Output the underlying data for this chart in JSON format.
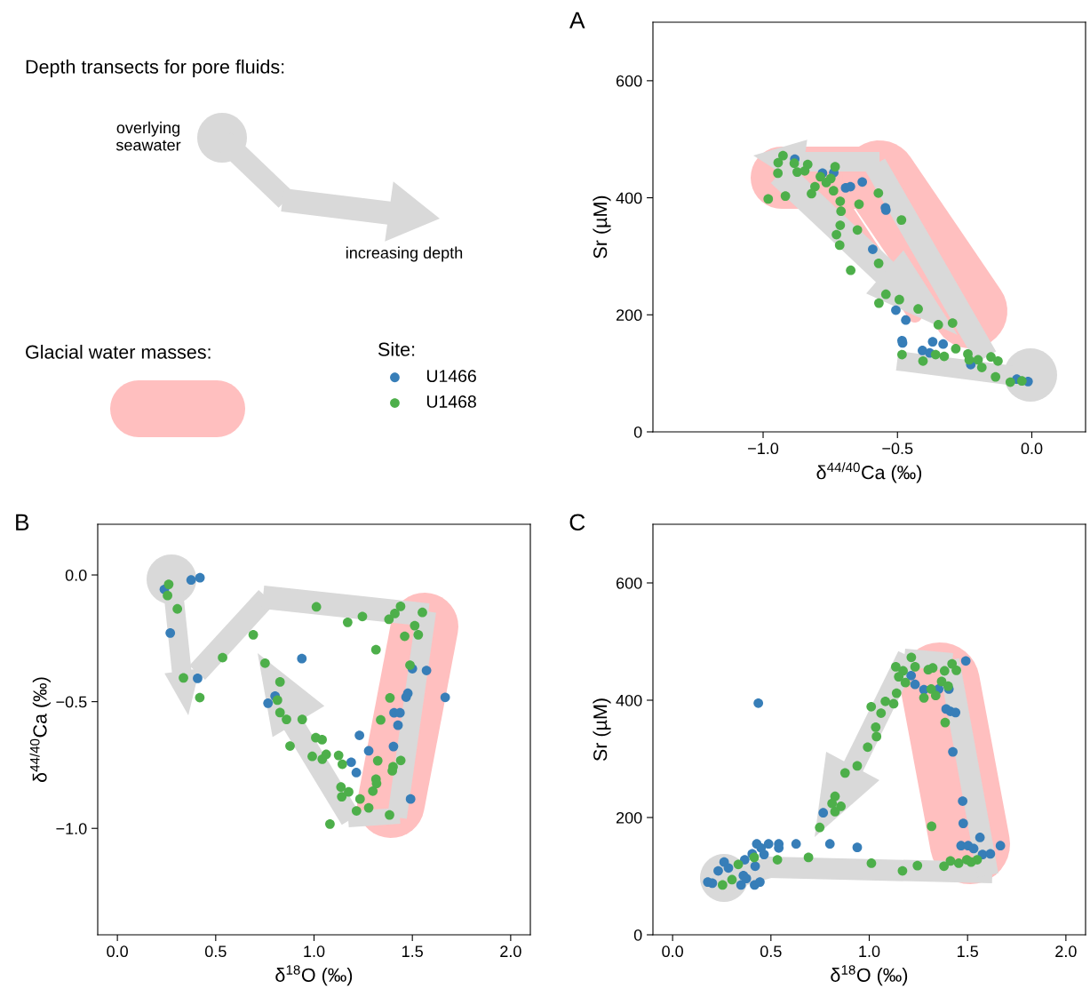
{
  "chart_data": [
    {
      "type": "other",
      "annotations": [
        "Depth transects for pore fluids:",
        "overlying\nseawater",
        "increasing depth",
        "Glacial water masses:"
      ]
    },
    {
      "type": "scatter",
      "title": "A",
      "xlabel": "δ$^{44/40}$Ca (‰)",
      "ylabel": "Sr (µM)",
      "xlim": [
        -1.41,
        0.2
      ],
      "ylim": [
        0,
        700
      ],
      "xticks": [
        {
          "value": -1.0,
          "label": "−1.0"
        },
        {
          "value": -0.5,
          "label": "−0.5"
        },
        {
          "value": 0,
          "label": "0.0"
        }
      ],
      "yticks": [
        0,
        200,
        400,
        600
      ],
      "marker": "circle",
      "grid": false,
      "legend": "left",
      "legend_title": "Site:",
      "series": [
        {
          "name": "U1466",
          "color": "#377eb8",
          "x": [
            -0.882,
            -0.779,
            -0.737,
            -0.693,
            -0.675,
            -0.631,
            -0.545,
            -0.543,
            -0.592,
            -0.506,
            -0.469,
            -0.483,
            -0.481,
            -0.369,
            -0.33,
            -0.407,
            -0.38,
            -0.227,
            -0.056,
            -0.014
          ],
          "values": [
            466,
            442,
            443,
            417,
            419,
            427,
            383,
            379,
            312,
            208,
            191,
            156,
            152,
            154,
            150,
            139,
            135,
            115,
            90,
            86
          ]
        },
        {
          "name": "U1468",
          "color": "#4daf4a",
          "x": [
            -0.926,
            -0.944,
            -0.945,
            -0.981,
            -0.917,
            -0.884,
            -0.873,
            -0.845,
            -0.834,
            -0.732,
            -0.787,
            -0.748,
            -0.765,
            -0.807,
            -0.82,
            -0.738,
            -0.713,
            -0.71,
            -0.643,
            -0.571,
            -0.485,
            -0.713,
            -0.727,
            -0.649,
            -0.715,
            -0.57,
            -0.674,
            -0.543,
            -0.493,
            -0.569,
            -0.423,
            -0.348,
            -0.295,
            -0.483,
            -0.405,
            -0.358,
            -0.326,
            -0.283,
            -0.238,
            -0.233,
            -0.2,
            -0.186,
            -0.152,
            -0.126,
            -0.135,
            -0.08,
            -0.037
          ],
          "values": [
            472,
            460,
            442,
            398,
            403,
            459,
            444,
            446,
            457,
            453,
            436,
            433,
            426,
            419,
            407,
            412,
            394,
            377,
            389,
            408,
            362,
            353,
            337,
            345,
            319,
            288,
            276,
            235,
            226,
            220,
            210,
            183,
            186,
            132,
            121,
            132,
            129,
            142,
            133,
            123,
            123,
            110,
            128,
            121,
            94,
            85,
            87
          ]
        }
      ]
    },
    {
      "type": "scatter",
      "title": "B",
      "xlabel": "δ$^{18}$O (‰)",
      "ylabel": "δ$^{44/40}$Ca (‰)",
      "xlim": [
        -0.1,
        2.1
      ],
      "ylim": [
        -1.42,
        0.2
      ],
      "xticks": [
        {
          "value": 0,
          "label": "0.0"
        },
        {
          "value": 0.5,
          "label": "0.5"
        },
        {
          "value": 1,
          "label": "1.0"
        },
        {
          "value": 1.5,
          "label": "1.5"
        },
        {
          "value": 2,
          "label": "2.0"
        }
      ],
      "yticks": [
        {
          "value": -1.0,
          "label": "−1.0"
        },
        {
          "value": -0.5,
          "label": "−0.5"
        },
        {
          "value": 0,
          "label": "0.0"
        }
      ],
      "marker": "circle",
      "grid": false,
      "series": [
        {
          "color": "#377eb8",
          "x": [
            0.239,
            0.375,
            0.42,
            0.269,
            0.408,
            0.938,
            0.802,
            0.766,
            1.5,
            1.572,
            1.667,
            1.477,
            1.468,
            1.407,
            1.437,
            1.427,
            1.231,
            1.404,
            1.278,
            1.189,
            1.215,
            1.491
          ],
          "values": [
            -0.057,
            -0.02,
            -0.011,
            -0.229,
            -0.408,
            -0.33,
            -0.478,
            -0.506,
            -0.37,
            -0.377,
            -0.483,
            -0.467,
            -0.482,
            -0.544,
            -0.544,
            -0.593,
            -0.633,
            -0.677,
            -0.694,
            -0.739,
            -0.78,
            -0.884
          ]
        },
        {
          "color": "#4daf4a",
          "x": [
            0.261,
            0.255,
            0.305,
            0.336,
            0.419,
            0.535,
            0.691,
            1.012,
            1.171,
            1.246,
            1.381,
            1.411,
            1.44,
            1.551,
            1.512,
            1.461,
            1.53,
            1.315,
            1.488,
            0.751,
            0.827,
            0.814,
            0.827,
            0.86,
            0.94,
            0.878,
            1.009,
            1.041,
            0.991,
            1.042,
            1.062,
            1.125,
            1.144,
            1.386,
            1.339,
            1.324,
            1.441,
            1.402,
            1.398,
            1.315,
            1.318,
            1.299,
            1.137,
            1.176,
            1.141,
            1.234,
            1.278,
            1.216,
            1.384,
            1.081
          ],
          "values": [
            -0.037,
            -0.081,
            -0.134,
            -0.406,
            -0.484,
            -0.326,
            -0.236,
            -0.126,
            -0.187,
            -0.164,
            -0.175,
            -0.152,
            -0.124,
            -0.148,
            -0.2,
            -0.242,
            -0.236,
            -0.295,
            -0.356,
            -0.348,
            -0.422,
            -0.494,
            -0.543,
            -0.57,
            -0.57,
            -0.675,
            -0.642,
            -0.65,
            -0.716,
            -0.727,
            -0.708,
            -0.712,
            -0.747,
            -0.485,
            -0.572,
            -0.733,
            -0.732,
            -0.757,
            -0.773,
            -0.806,
            -0.823,
            -0.853,
            -0.837,
            -0.856,
            -0.875,
            -0.884,
            -0.919,
            -0.931,
            -0.947,
            -0.983
          ]
        }
      ]
    },
    {
      "type": "scatter",
      "title": "C",
      "xlabel": "δ$^{18}$O (‰)",
      "ylabel": "Sr (µM)",
      "xlim": [
        -0.1,
        2.1
      ],
      "ylim": [
        0,
        700
      ],
      "xticks": [
        {
          "value": 0,
          "label": "0.0"
        },
        {
          "value": 0.5,
          "label": "0.5"
        },
        {
          "value": 1,
          "label": "1.0"
        },
        {
          "value": 1.5,
          "label": "1.5"
        },
        {
          "value": 2,
          "label": "2.0"
        }
      ],
      "yticks": [
        0,
        200,
        400,
        600
      ],
      "marker": "circle",
      "grid": false,
      "series": [
        {
          "color": "#377eb8",
          "x": [
            0.436,
            1.491,
            1.213,
            1.233,
            1.278,
            1.353,
            1.405,
            1.391,
            1.413,
            1.439,
            1.425,
            1.475,
            1.478,
            1.563,
            1.467,
            1.503,
            1.531,
            1.576,
            1.616,
            1.667,
            0.939,
            0.8,
            0.628,
            0.54,
            0.54,
            0.488,
            0.428,
            0.45,
            0.465,
            0.405,
            0.367,
            0.42,
            0.262,
            0.232,
            0.284,
            0.36,
            0.375,
            0.179,
            0.202,
            0.348,
            0.417,
            0.444,
            0.766
          ],
          "values": [
            395,
            467,
            442,
            427,
            418,
            419,
            419,
            385,
            381,
            379,
            312,
            228,
            190,
            166,
            152,
            152,
            147,
            137,
            138,
            152,
            149,
            155,
            155,
            155,
            148,
            155,
            155,
            148,
            137,
            138,
            128,
            117,
            124,
            109,
            114,
            101,
            96,
            90,
            88,
            85,
            85,
            90,
            208
          ]
        },
        {
          "color": "#4daf4a",
          "x": [
            1.214,
            1.233,
            1.135,
            1.172,
            1.15,
            1.184,
            1.3,
            1.323,
            1.383,
            1.421,
            1.443,
            1.368,
            1.401,
            1.315,
            1.278,
            1.338,
            1.386,
            1.139,
            1.082,
            1.124,
            1.01,
            1.06,
            1.033,
            1.037,
            0.992,
            0.939,
            0.877,
            0.826,
            0.811,
            0.856,
            0.826,
            0.748,
            1.317,
            0.533,
            0.691,
            1.011,
            1.169,
            1.245,
            1.38,
            1.413,
            1.455,
            1.496,
            1.549,
            1.518,
            0.415,
            0.334,
            0.302,
            0.254
          ],
          "values": [
            473,
            457,
            457,
            450,
            440,
            430,
            452,
            455,
            450,
            462,
            451,
            432,
            424,
            419,
            404,
            408,
            362,
            412,
            398,
            394,
            389,
            378,
            354,
            338,
            320,
            288,
            276,
            236,
            224,
            219,
            210,
            183,
            185,
            128,
            132,
            122,
            109,
            118,
            117,
            126,
            122,
            128,
            128,
            124,
            132,
            120,
            94,
            85
          ]
        }
      ]
    }
  ]
}
